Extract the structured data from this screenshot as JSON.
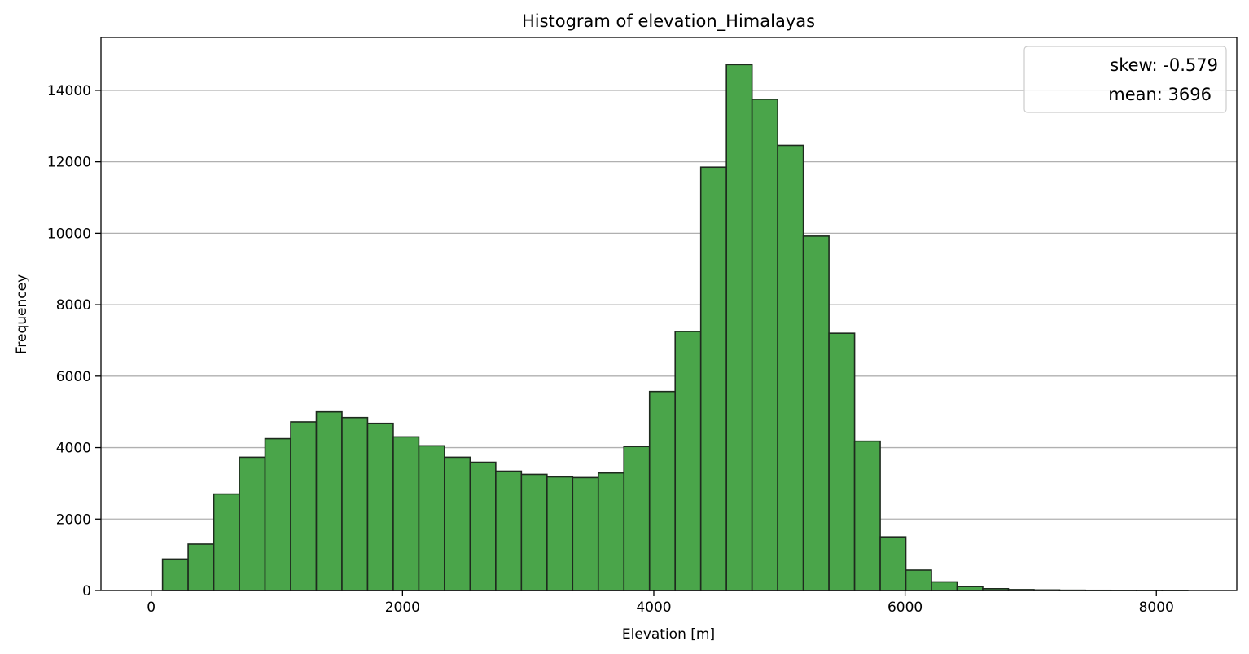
{
  "chart_data": {
    "type": "bar",
    "title": "Histogram of elevation_Himalayas",
    "xlabel": "Elevation [m]",
    "ylabel": "Frequencey",
    "bin_start": 90,
    "bin_width": 204,
    "values": [
      880,
      1300,
      2700,
      3730,
      4250,
      4720,
      5000,
      4840,
      4680,
      4300,
      4050,
      3730,
      3590,
      3340,
      3250,
      3180,
      3160,
      3290,
      4030,
      5570,
      7250,
      11850,
      14720,
      13750,
      12460,
      9920,
      7200,
      4180,
      1500,
      570,
      240,
      110,
      50,
      25,
      15,
      8,
      5,
      3,
      2,
      1
    ],
    "xlim": [
      -400,
      8640
    ],
    "ylim": [
      0,
      15480
    ],
    "xticks": [
      0,
      2000,
      4000,
      6000,
      8000
    ],
    "yticks": [
      0,
      2000,
      4000,
      6000,
      8000,
      10000,
      12000,
      14000
    ],
    "grid": "y",
    "legend": {
      "placement": "top-right",
      "entries": [
        "skew: -0.579",
        "mean: 3696"
      ]
    },
    "colors": {
      "bar_fill": "#4aa54a",
      "bar_edge": "#1e2a1e",
      "grid": "#b0b0b0"
    }
  }
}
